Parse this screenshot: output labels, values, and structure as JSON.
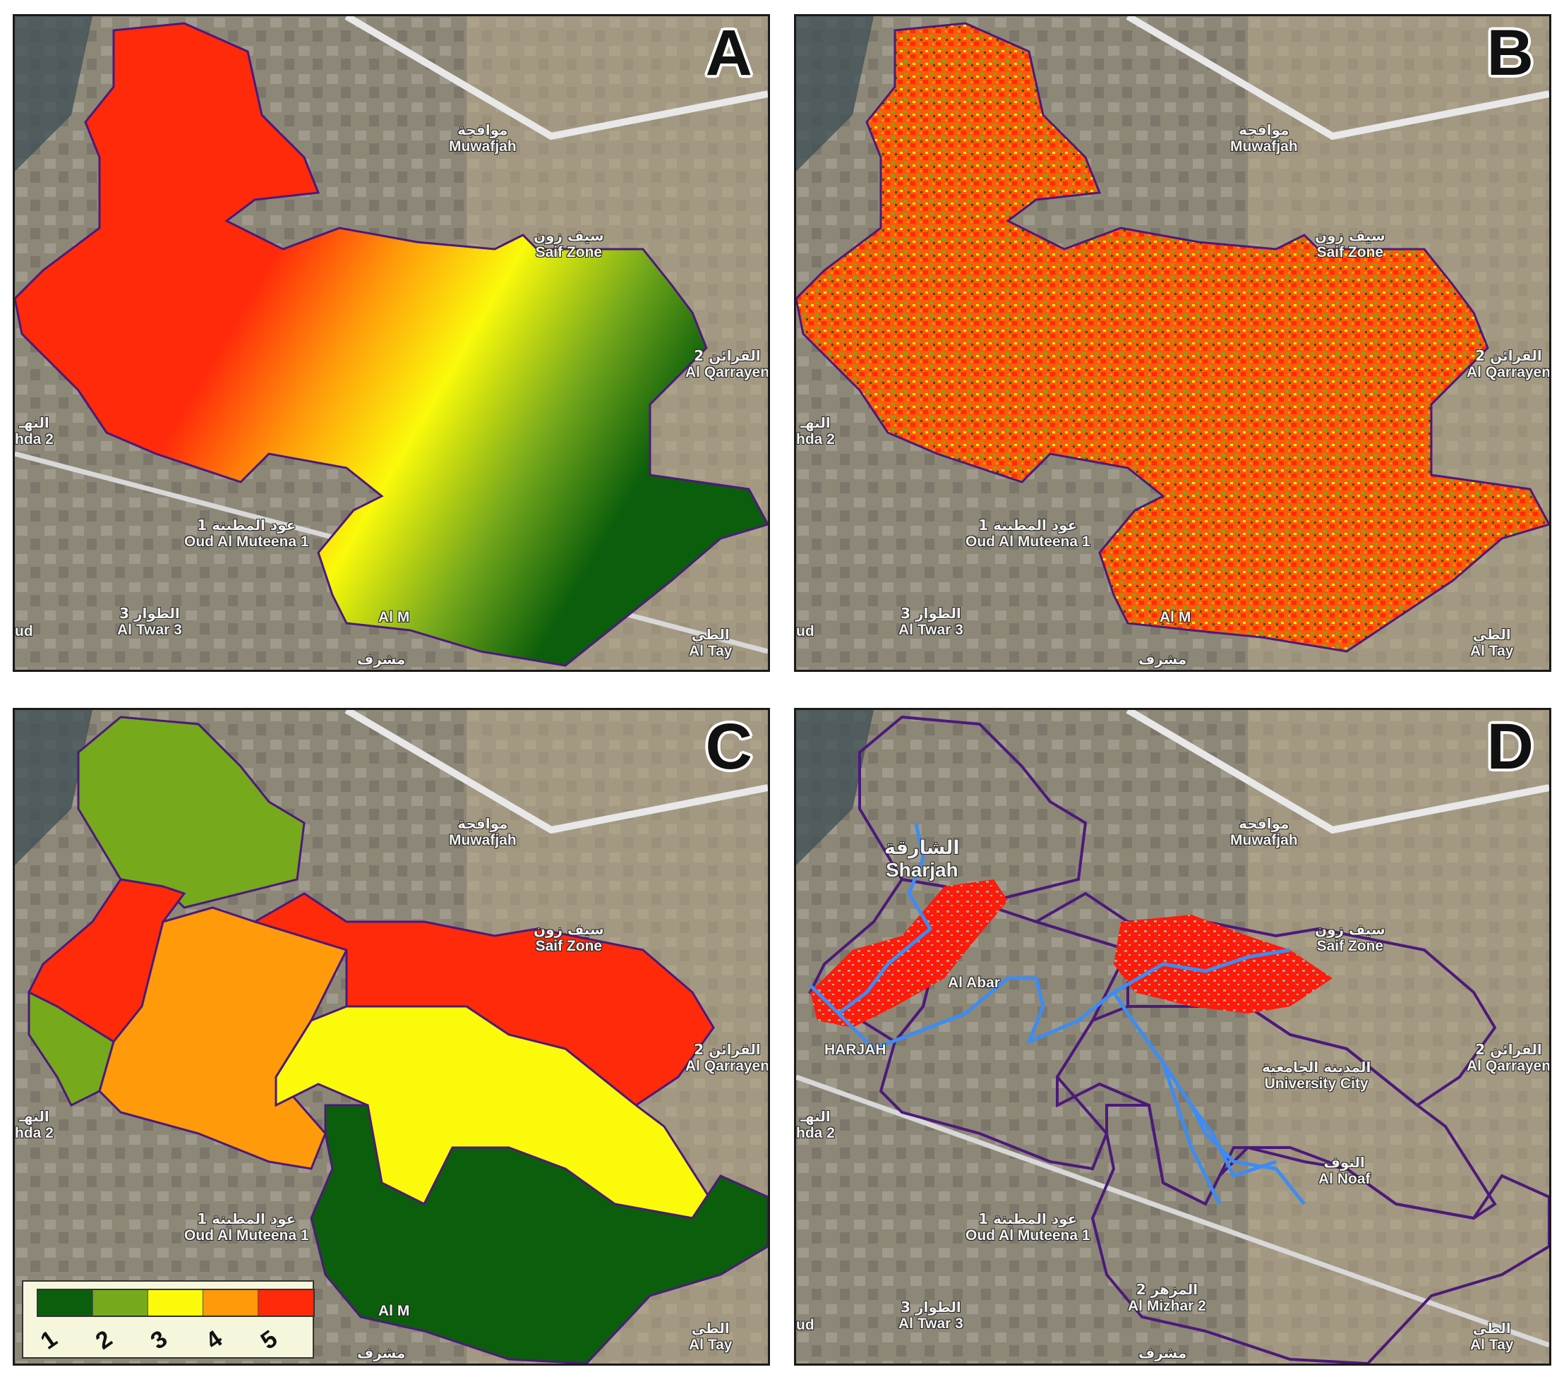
{
  "colors": {
    "class1": "#0b5e0b",
    "class2": "#76a91c",
    "class3": "#fafa0a",
    "class4": "#ff9a0a",
    "class5": "#ff2a0a",
    "boundary": "#4b1a7a",
    "stream": "#3d8cf2",
    "basemap": "#8f8a7c"
  },
  "panels": [
    {
      "id": "A",
      "letter": "A"
    },
    {
      "id": "B",
      "letter": "B"
    },
    {
      "id": "C",
      "letter": "C"
    },
    {
      "id": "D",
      "letter": "D"
    }
  ],
  "place_labels": {
    "muwafjah": {
      "ar": "موافجة",
      "en": "Muwafjah"
    },
    "saif_zone": {
      "ar": "سيف زون",
      "en": "Saif Zone"
    },
    "al_qarrayen": {
      "ar": "القرائن 2",
      "en": "Al Qarrayen"
    },
    "al_nahda": {
      "ar": "النهـ",
      "en": "hda 2"
    },
    "oud_al_muteena": {
      "ar": "عود المطينة 1",
      "en": "Oud Al Muteena 1"
    },
    "al_twar": {
      "ar": "الطوار 3",
      "en": "Al Twar 3"
    },
    "al_tay": {
      "ar": "الطي",
      "en": "Al Tay"
    },
    "mushrif": {
      "ar": "مشرف",
      "en": ""
    },
    "ud": {
      "ar": "",
      "en": "ud"
    },
    "al_m": {
      "ar": "",
      "en": "Al M"
    },
    "sharjah": {
      "ar": "الشارقة",
      "en": "Sharjah"
    },
    "university_city": {
      "ar": "المدينة الجامعية",
      "en": "University City"
    },
    "al_noaf": {
      "ar": "النوف",
      "en": "Al Noaf"
    },
    "al_mizhar": {
      "ar": "المزهر 2",
      "en": "Al Mizhar 2"
    },
    "al_abar": {
      "ar": "",
      "en": "Al Abar"
    },
    "harjah": {
      "ar": "",
      "en": "HARJAH"
    }
  },
  "legend": {
    "classes": [
      "1",
      "2",
      "3",
      "4",
      "5"
    ]
  }
}
